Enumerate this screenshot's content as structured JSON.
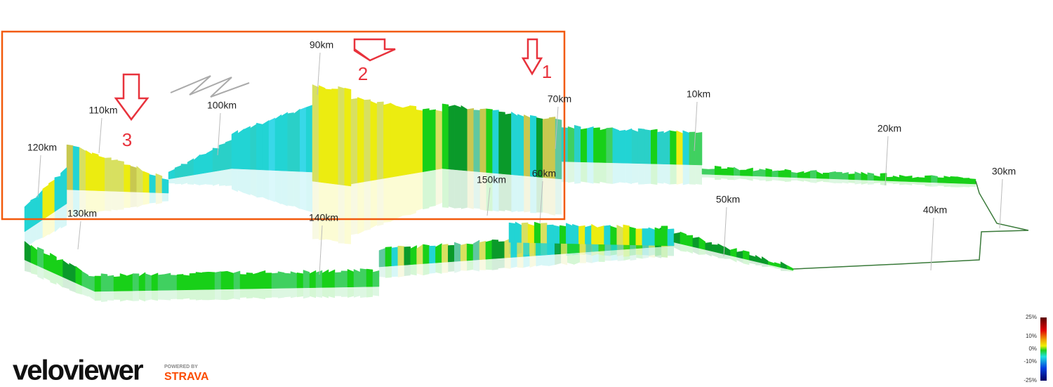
{
  "distance_labels": [
    "10km",
    "20km",
    "30km",
    "40km",
    "50km",
    "60km",
    "70km",
    "90km",
    "100km",
    "110km",
    "120km",
    "130km",
    "140km",
    "150km"
  ],
  "annotations": [
    "1",
    "2",
    "3"
  ],
  "logo": {
    "name": "veloviewer",
    "powered_by": "POWERED BY",
    "partner": "STRAVA"
  },
  "legend": {
    "labels": [
      "25%",
      "10%",
      "0%",
      "-10%",
      "-25%"
    ]
  }
}
